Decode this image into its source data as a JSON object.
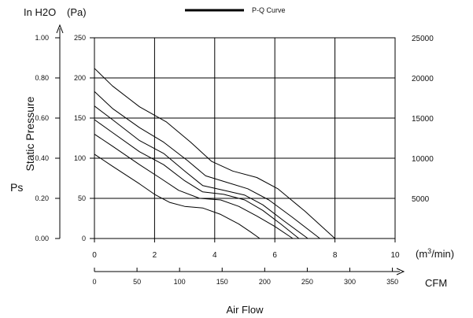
{
  "header": {
    "unit_left": "In H2O",
    "unit_pa": "(Pa)",
    "legend_label": "P-Q Curve"
  },
  "axes": {
    "ylabel": "Static Pressure",
    "ylabel_short": "Ps",
    "xlabel": "Air Flow",
    "x_unit_primary": "(m3/min)",
    "x_unit_secondary": "CFM"
  },
  "chart_data": {
    "type": "line",
    "title": "",
    "xlabel": "Air Flow",
    "ylabel": "Static Pressure",
    "x_unit": "m3/min",
    "y_unit": "Pa",
    "xlim": [
      0,
      10
    ],
    "ylim": [
      0,
      250
    ],
    "grid": true,
    "legend": {
      "label": "P-Q Curve",
      "placement": "top-center"
    },
    "x_ticks": [
      "0",
      "2",
      "4",
      "6",
      "8",
      "10"
    ],
    "y_ticks_pa": [
      "0",
      "50",
      "100",
      "150",
      "200",
      "250"
    ],
    "y_ticks_inh2o": [
      "0.00",
      "0.20",
      "0.40",
      "0.60",
      "0.80",
      "1.00"
    ],
    "y_ticks_right": [
      "",
      "5000",
      "10000",
      "15000",
      "20000",
      "25000"
    ],
    "cfm_ticks": [
      "0",
      "50",
      "100",
      "150",
      "200",
      "250",
      "300",
      "350"
    ],
    "series": [
      {
        "x": [
          0,
          0.6,
          1.5,
          2.0,
          2.5,
          3.0,
          3.6,
          4.2,
          4.8,
          5.2,
          5.5
        ],
        "y": [
          105,
          90,
          68,
          55,
          45,
          40,
          38,
          30,
          18,
          8,
          0
        ]
      },
      {
        "x": [
          0,
          0.6,
          1.5,
          2.2,
          2.8,
          3.5,
          4.2,
          4.8,
          5.4,
          6.0,
          6.6
        ],
        "y": [
          130,
          115,
          92,
          75,
          60,
          50,
          48,
          40,
          28,
          15,
          0
        ]
      },
      {
        "x": [
          0,
          0.6,
          1.5,
          2.3,
          3.0,
          3.6,
          4.3,
          5.0,
          5.6,
          6.2,
          6.8
        ],
        "y": [
          148,
          132,
          108,
          92,
          72,
          58,
          55,
          48,
          35,
          18,
          0
        ]
      },
      {
        "x": [
          0,
          0.6,
          1.5,
          2.3,
          3.0,
          3.6,
          4.3,
          5.0,
          5.6,
          6.3,
          7.1
        ],
        "y": [
          165,
          148,
          122,
          106,
          84,
          66,
          60,
          54,
          42,
          22,
          0
        ]
      },
      {
        "x": [
          0,
          0.6,
          1.5,
          2.3,
          3.1,
          3.7,
          4.4,
          5.1,
          5.8,
          6.6,
          7.5
        ],
        "y": [
          183,
          162,
          138,
          120,
          97,
          78,
          70,
          62,
          48,
          26,
          0
        ]
      },
      {
        "x": [
          0,
          0.6,
          1.5,
          2.4,
          3.2,
          3.9,
          4.6,
          5.4,
          6.1,
          7.0,
          8.0
        ],
        "y": [
          212,
          190,
          164,
          145,
          120,
          96,
          84,
          76,
          62,
          34,
          0
        ]
      }
    ]
  }
}
